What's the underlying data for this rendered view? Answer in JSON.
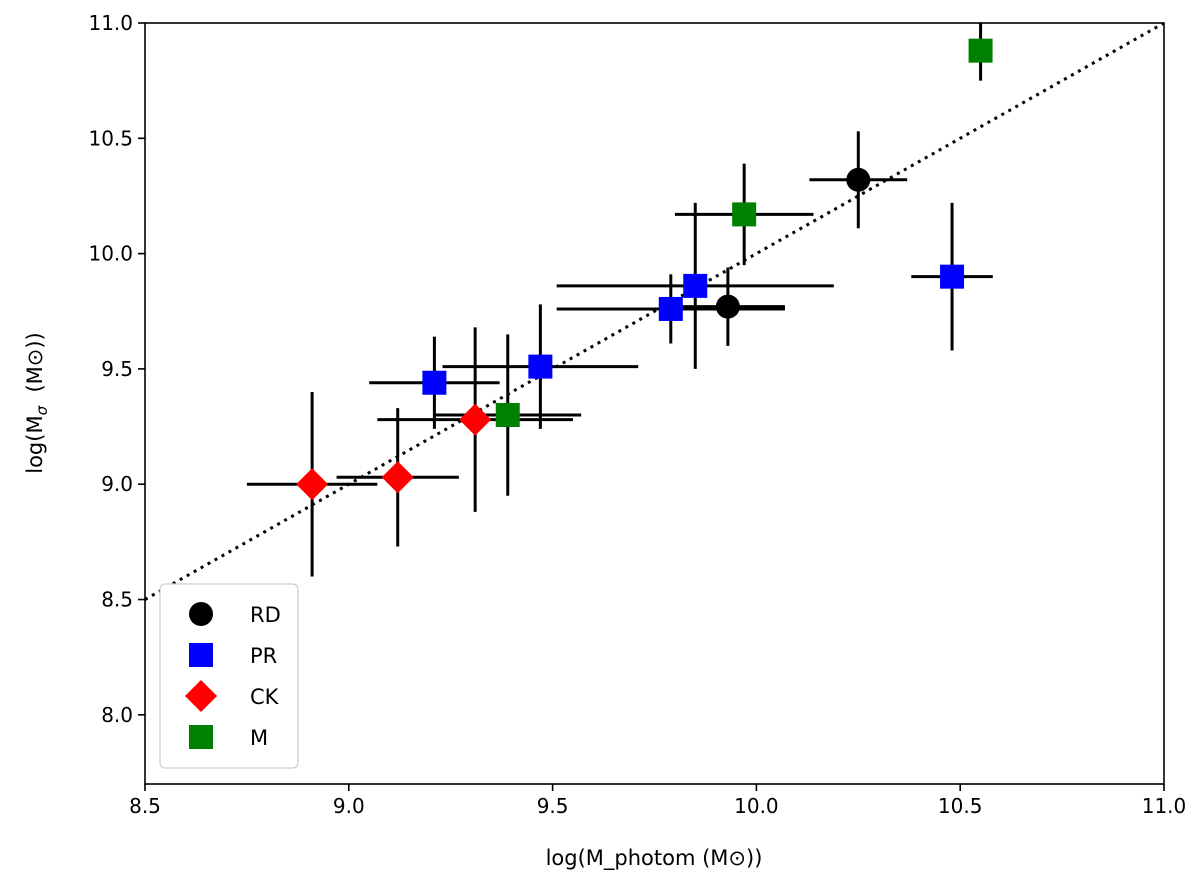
{
  "chart_data": {
    "type": "scatter",
    "xlabel": "log(M_photom (M⊙))",
    "ylabel_main": "log(M",
    "ylabel_sub": "σ",
    "ylabel_rest": "  (M⊙))",
    "xlim": [
      8.5,
      11.0
    ],
    "ylim": [
      7.7,
      11.0
    ],
    "x_ticks": [
      "8.5",
      "9.0",
      "9.5",
      "10.0",
      "10.5",
      "11.0"
    ],
    "y_ticks": [
      "8.0",
      "8.5",
      "9.0",
      "9.5",
      "10.0",
      "10.5",
      "11.0"
    ],
    "grid": false,
    "legend_position": "lower left",
    "reference_line": {
      "style": "dotted",
      "from": [
        8.5,
        8.5
      ],
      "to": [
        11.0,
        11.0
      ],
      "color": "#000000"
    },
    "series": [
      {
        "name": "RD",
        "marker": "circle",
        "color": "#000000",
        "points": [
          {
            "x": 9.93,
            "y": 9.77,
            "xerr": [
              0.14,
              0.14
            ],
            "yerr": [
              0.17,
              0.17
            ]
          },
          {
            "x": 10.25,
            "y": 10.32,
            "xerr": [
              0.12,
              0.12
            ],
            "yerr": [
              0.21,
              0.21
            ]
          }
        ]
      },
      {
        "name": "PR",
        "marker": "square",
        "color": "#0000ff",
        "points": [
          {
            "x": 9.21,
            "y": 9.44,
            "xerr": [
              0.16,
              0.16
            ],
            "yerr": [
              0.2,
              0.2
            ]
          },
          {
            "x": 9.47,
            "y": 9.51,
            "xerr": [
              0.24,
              0.24
            ],
            "yerr": [
              0.27,
              0.27
            ]
          },
          {
            "x": 9.79,
            "y": 9.76,
            "xerr": [
              0.28,
              0.28
            ],
            "yerr": [
              0.15,
              0.15
            ]
          },
          {
            "x": 9.85,
            "y": 9.86,
            "xerr": [
              0.34,
              0.34
            ],
            "yerr": [
              0.36,
              0.36
            ]
          },
          {
            "x": 10.48,
            "y": 9.9,
            "xerr": [
              0.1,
              0.1
            ],
            "yerr": [
              0.32,
              0.32
            ]
          }
        ]
      },
      {
        "name": "CK",
        "marker": "diamond",
        "color": "#ff0000",
        "points": [
          {
            "x": 8.91,
            "y": 9.0,
            "xerr": [
              0.16,
              0.16
            ],
            "yerr": [
              0.4,
              0.4
            ]
          },
          {
            "x": 9.12,
            "y": 9.03,
            "xerr": [
              0.15,
              0.15
            ],
            "yerr": [
              0.3,
              0.3
            ]
          },
          {
            "x": 9.31,
            "y": 9.28,
            "xerr": [
              0.24,
              0.24
            ],
            "yerr": [
              0.4,
              0.4
            ]
          }
        ]
      },
      {
        "name": "M",
        "marker": "square",
        "color": "#008000",
        "points": [
          {
            "x": 9.39,
            "y": 9.3,
            "xerr": [
              0.18,
              0.18
            ],
            "yerr": [
              0.35,
              0.35
            ]
          },
          {
            "x": 9.97,
            "y": 10.17,
            "xerr": [
              0.17,
              0.17
            ],
            "yerr": [
              0.22,
              0.22
            ]
          },
          {
            "x": 10.55,
            "y": 10.88,
            "xerr": [
              0.0,
              0.0
            ],
            "yerr": [
              0.13,
              0.13
            ]
          }
        ]
      }
    ]
  }
}
